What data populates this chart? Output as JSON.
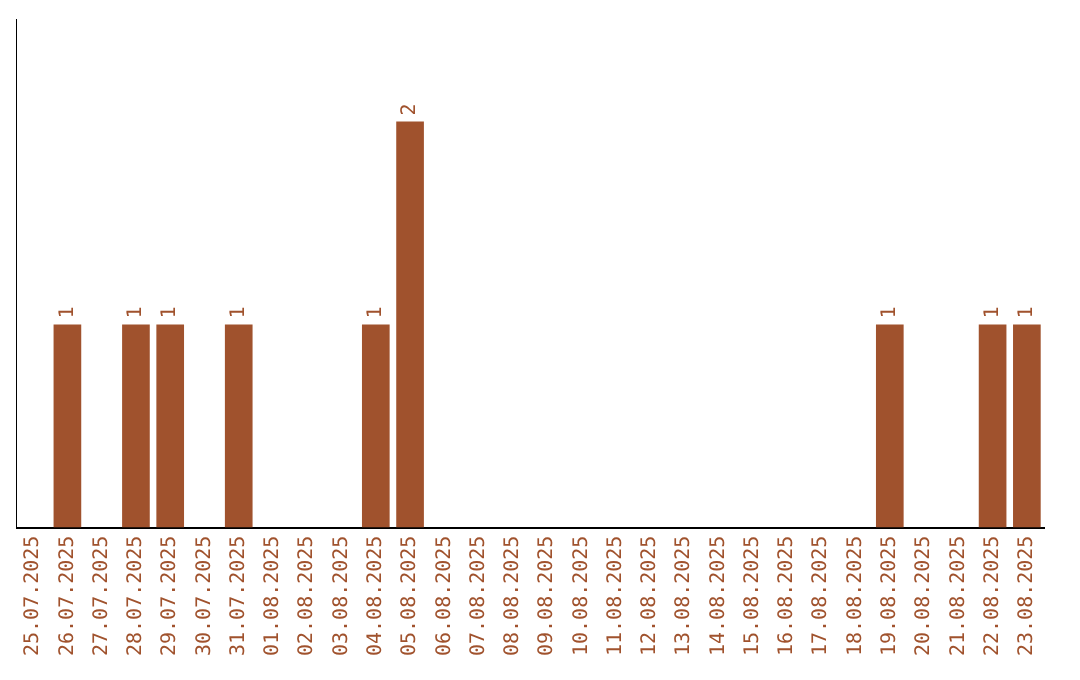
{
  "chart_data": {
    "type": "bar",
    "categories": [
      "25.07.2025",
      "26.07.2025",
      "27.07.2025",
      "28.07.2025",
      "29.07.2025",
      "30.07.2025",
      "31.07.2025",
      "01.08.2025",
      "02.08.2025",
      "03.08.2025",
      "04.08.2025",
      "05.08.2025",
      "06.08.2025",
      "07.08.2025",
      "08.08.2025",
      "09.08.2025",
      "10.08.2025",
      "11.08.2025",
      "12.08.2025",
      "13.08.2025",
      "14.08.2025",
      "15.08.2025",
      "16.08.2025",
      "17.08.2025",
      "18.08.2025",
      "19.08.2025",
      "20.08.2025",
      "21.08.2025",
      "22.08.2025",
      "23.08.2025"
    ],
    "values": [
      0,
      1,
      0,
      1,
      1,
      0,
      1,
      0,
      0,
      0,
      1,
      2,
      0,
      0,
      0,
      0,
      0,
      0,
      0,
      0,
      0,
      0,
      0,
      0,
      0,
      1,
      0,
      0,
      1,
      1
    ],
    "value_labels": [
      null,
      "1",
      null,
      "1",
      "1",
      null,
      "1",
      null,
      null,
      null,
      "1",
      "2",
      null,
      null,
      null,
      null,
      null,
      null,
      null,
      null,
      null,
      null,
      null,
      null,
      null,
      "1",
      null,
      null,
      "1",
      "1"
    ],
    "color": "#a0522d",
    "grid": false,
    "legend": false,
    "tick_labels": "x"
  }
}
